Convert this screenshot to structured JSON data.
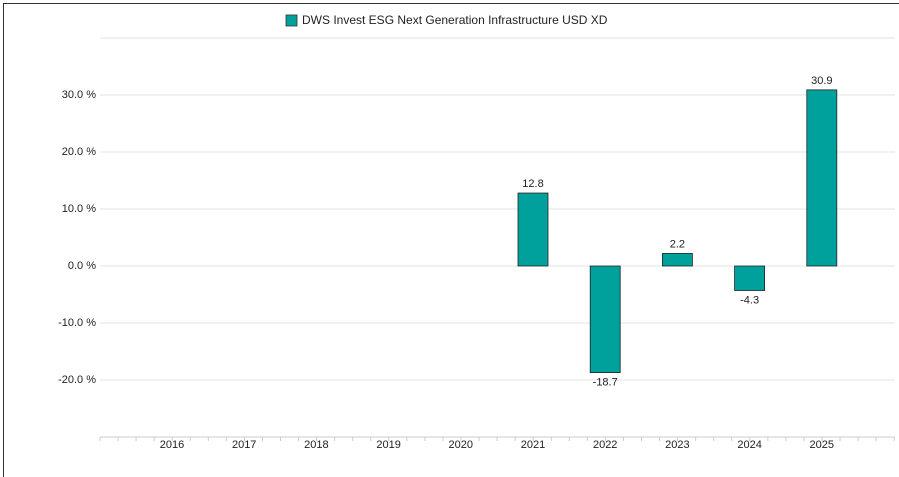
{
  "chart_data": {
    "type": "bar",
    "legend": "DWS Invest ESG Next Generation Infrastructure USD XD",
    "categories": [
      "2016",
      "2017",
      "2018",
      "2019",
      "2020",
      "2021",
      "2022",
      "2023",
      "2024",
      "2025"
    ],
    "values": [
      null,
      null,
      null,
      null,
      null,
      12.8,
      -18.7,
      2.2,
      -4.3,
      30.9
    ],
    "color": "#00a09d",
    "ylim": [
      -30,
      40
    ],
    "yticks": [
      {
        "value": -20,
        "label": "-20.0 %"
      },
      {
        "value": -10,
        "label": "-10.0 %"
      },
      {
        "value": 0,
        "label": "0.0 %"
      },
      {
        "value": 10,
        "label": "10.0 %"
      },
      {
        "value": 20,
        "label": "20.0 %"
      },
      {
        "value": 30,
        "label": "30.0 %"
      }
    ],
    "grid": true
  }
}
